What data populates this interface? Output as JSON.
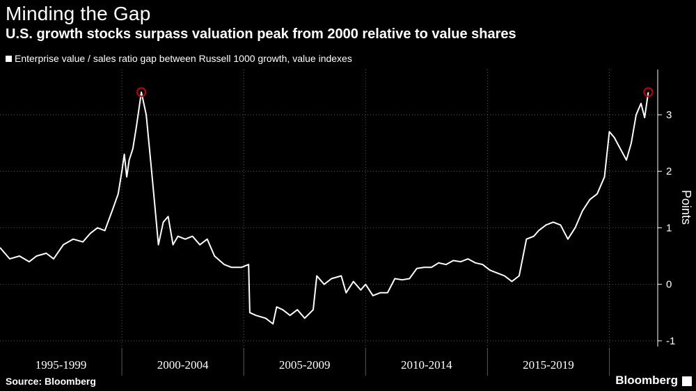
{
  "title": "Minding the Gap",
  "subtitle": "U.S. growth stocks surpass valuation peak from 2000 relative to value shares",
  "legend": {
    "label": "Enterprise value / sales ratio gap between Russell 1000 growth, value indexes",
    "color": "#ffffff"
  },
  "source": "Source: Bloomberg",
  "brand": "Bloomberg",
  "chart_data": {
    "type": "line",
    "ylabel": "Points",
    "ylim": [
      -1.1,
      3.8
    ],
    "yticks": [
      -1,
      0,
      1,
      2,
      3
    ],
    "xlim": [
      1995.0,
      2021.7
    ],
    "categories": [
      "1995-1999",
      "2000-2004",
      "2005-2009",
      "2010-2014",
      "2015-2019"
    ],
    "grid": true,
    "series": [
      {
        "color": "#ffffff",
        "x": [
          1995.0,
          1995.4,
          1995.8,
          1996.2,
          1996.5,
          1996.9,
          1997.2,
          1997.6,
          1998.0,
          1998.4,
          1998.7,
          1999.0,
          1999.3,
          1999.6,
          1999.85,
          2000.0,
          2000.1,
          2000.2,
          2000.3,
          2000.45,
          2000.6,
          2000.8,
          2001.0,
          2001.2,
          2001.35,
          2001.5,
          2001.7,
          2001.9,
          2002.1,
          2002.3,
          2002.6,
          2002.9,
          2003.2,
          2003.5,
          2003.8,
          2004.2,
          2004.5,
          2004.9,
          2005.2,
          2005.25,
          2005.5,
          2005.9,
          2006.2,
          2006.35,
          2006.6,
          2006.9,
          2007.2,
          2007.5,
          2007.85,
          2008.0,
          2008.3,
          2008.6,
          2009.0,
          2009.2,
          2009.5,
          2009.8,
          2010.0,
          2010.3,
          2010.6,
          2010.9,
          2011.2,
          2011.5,
          2011.8,
          2012.1,
          2012.4,
          2012.7,
          2013.0,
          2013.3,
          2013.6,
          2013.9,
          2014.2,
          2014.5,
          2014.8,
          2015.1,
          2015.4,
          2015.7,
          2016.0,
          2016.3,
          2016.6,
          2016.9,
          2017.1,
          2017.4,
          2017.7,
          2018.0,
          2018.3,
          2018.6,
          2018.9,
          2019.2,
          2019.5,
          2019.8,
          2020.0,
          2020.2,
          2020.45,
          2020.7,
          2020.9,
          2021.1,
          2021.3,
          2021.45,
          2021.6
        ],
        "y": [
          0.65,
          0.45,
          0.5,
          0.4,
          0.5,
          0.55,
          0.45,
          0.7,
          0.8,
          0.75,
          0.9,
          1.0,
          0.95,
          1.3,
          1.6,
          2.0,
          2.3,
          1.9,
          2.2,
          2.4,
          2.8,
          3.4,
          3.0,
          2.1,
          1.4,
          0.7,
          1.1,
          1.2,
          0.7,
          0.85,
          0.8,
          0.85,
          0.7,
          0.8,
          0.5,
          0.35,
          0.3,
          0.3,
          0.35,
          -0.5,
          -0.55,
          -0.6,
          -0.7,
          -0.4,
          -0.45,
          -0.55,
          -0.45,
          -0.6,
          -0.45,
          0.15,
          0.0,
          0.1,
          0.15,
          -0.15,
          0.05,
          -0.1,
          0.0,
          -0.2,
          -0.15,
          -0.15,
          0.1,
          0.08,
          0.1,
          0.28,
          0.3,
          0.3,
          0.38,
          0.35,
          0.42,
          0.4,
          0.45,
          0.38,
          0.35,
          0.25,
          0.2,
          0.15,
          0.05,
          0.15,
          0.8,
          0.85,
          0.95,
          1.05,
          1.1,
          1.05,
          0.8,
          1.0,
          1.3,
          1.5,
          1.6,
          1.9,
          2.7,
          2.6,
          2.4,
          2.2,
          2.5,
          3.0,
          3.2,
          2.95,
          3.4
        ]
      }
    ],
    "annotations": [
      {
        "type": "circle",
        "x": 2000.8,
        "y": 3.4,
        "color": "#cc0000"
      },
      {
        "type": "circle",
        "x": 2021.6,
        "y": 3.4,
        "color": "#cc0000"
      }
    ]
  }
}
